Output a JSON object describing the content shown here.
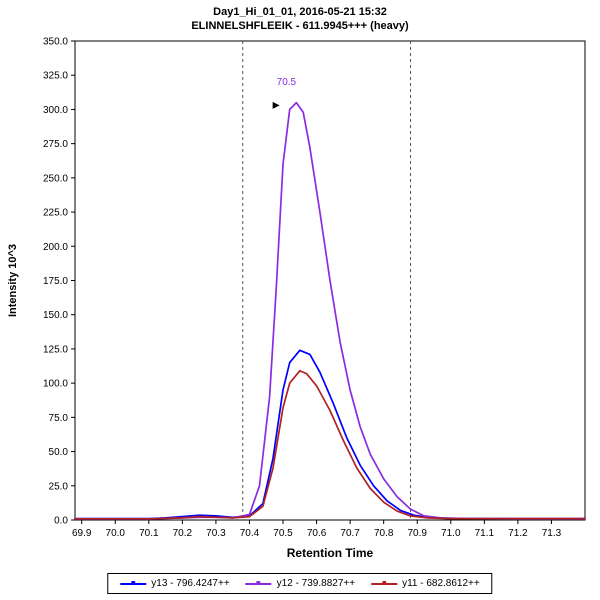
{
  "header": {
    "line1": "Day1_Hi_01_01, 2016-05-21 15:32",
    "line2": "ELINNELSHFLEEIK - 611.9945+++ (heavy)"
  },
  "axes": {
    "x_label": "Retention Time",
    "y_label": "Intensity 10^3"
  },
  "legend": {
    "items": [
      {
        "label": "y13 - 796.4247++",
        "color": "#0000ff"
      },
      {
        "label": "y12 - 739.8827++",
        "color": "#8a2be2"
      },
      {
        "label": "y11 - 682.8612++",
        "color": "#b22222"
      }
    ]
  },
  "chart_data": {
    "type": "line",
    "title": "Day1_Hi_01_01, 2016-05-21 15:32 / ELINNELSHFLEEIK - 611.9945+++ (heavy)",
    "xlabel": "Retention Time",
    "ylabel": "Intensity 10^3",
    "xlim": [
      69.88,
      71.4
    ],
    "ylim": [
      0,
      350
    ],
    "x_ticks": {
      "start": 69.9,
      "end": 71.3,
      "step": 0.1,
      "decimals": 1
    },
    "y_ticks": {
      "start": 0,
      "end": 350,
      "step": 25,
      "decimals": 1
    },
    "grid": false,
    "legend_position": "bottom",
    "boundaries": [
      70.38,
      70.88
    ],
    "boundary_color": "#555555",
    "annotation": {
      "text": "70.5",
      "text_x": 70.51,
      "text_y": 318,
      "arrow_x": 70.487,
      "arrow_y": 303,
      "color": "#8a2be2",
      "arrow_color": "#000000"
    },
    "series": [
      {
        "name": "y13 - 796.4247++",
        "color": "#0000ff",
        "points": [
          [
            69.88,
            1
          ],
          [
            70.0,
            1
          ],
          [
            70.1,
            1
          ],
          [
            70.15,
            1.5
          ],
          [
            70.2,
            2.5
          ],
          [
            70.25,
            3.5
          ],
          [
            70.3,
            3
          ],
          [
            70.35,
            2
          ],
          [
            70.4,
            3
          ],
          [
            70.44,
            12
          ],
          [
            70.47,
            45
          ],
          [
            70.5,
            95
          ],
          [
            70.52,
            115
          ],
          [
            70.55,
            124
          ],
          [
            70.58,
            121
          ],
          [
            70.61,
            108
          ],
          [
            70.65,
            85
          ],
          [
            70.69,
            60
          ],
          [
            70.73,
            40
          ],
          [
            70.77,
            25
          ],
          [
            70.81,
            14
          ],
          [
            70.85,
            7
          ],
          [
            70.89,
            3.5
          ],
          [
            70.93,
            2
          ],
          [
            71.0,
            1
          ],
          [
            71.1,
            1
          ],
          [
            71.2,
            1
          ],
          [
            71.3,
            1
          ],
          [
            71.4,
            1
          ]
        ]
      },
      {
        "name": "y12 - 739.8827++",
        "color": "#8a2be2",
        "points": [
          [
            69.88,
            0.8
          ],
          [
            70.0,
            0.8
          ],
          [
            70.1,
            0.8
          ],
          [
            70.2,
            1.5
          ],
          [
            70.25,
            2
          ],
          [
            70.3,
            2
          ],
          [
            70.35,
            1.5
          ],
          [
            70.4,
            4
          ],
          [
            70.43,
            25
          ],
          [
            70.46,
            90
          ],
          [
            70.48,
            170
          ],
          [
            70.5,
            260
          ],
          [
            70.52,
            300
          ],
          [
            70.54,
            305
          ],
          [
            70.56,
            298
          ],
          [
            70.58,
            272
          ],
          [
            70.61,
            225
          ],
          [
            70.64,
            175
          ],
          [
            70.67,
            130
          ],
          [
            70.7,
            95
          ],
          [
            70.73,
            68
          ],
          [
            70.76,
            48
          ],
          [
            70.8,
            30
          ],
          [
            70.84,
            17
          ],
          [
            70.88,
            8
          ],
          [
            70.92,
            3
          ],
          [
            70.97,
            1.5
          ],
          [
            71.05,
            1
          ],
          [
            71.2,
            0.8
          ],
          [
            71.4,
            0.8
          ]
        ]
      },
      {
        "name": "y11 - 682.8612++",
        "color": "#b22222",
        "points": [
          [
            69.88,
            0.9
          ],
          [
            70.0,
            0.9
          ],
          [
            70.1,
            0.9
          ],
          [
            70.2,
            1.5
          ],
          [
            70.25,
            2.5
          ],
          [
            70.3,
            2
          ],
          [
            70.35,
            1.5
          ],
          [
            70.4,
            2.5
          ],
          [
            70.44,
            10
          ],
          [
            70.47,
            38
          ],
          [
            70.5,
            82
          ],
          [
            70.52,
            100
          ],
          [
            70.55,
            109
          ],
          [
            70.57,
            107
          ],
          [
            70.6,
            98
          ],
          [
            70.64,
            80
          ],
          [
            70.68,
            58
          ],
          [
            70.72,
            38
          ],
          [
            70.76,
            23
          ],
          [
            70.8,
            13
          ],
          [
            70.84,
            6.5
          ],
          [
            70.88,
            3
          ],
          [
            70.93,
            1.5
          ],
          [
            71.0,
            1
          ],
          [
            71.2,
            1
          ],
          [
            71.4,
            1
          ]
        ]
      }
    ]
  }
}
